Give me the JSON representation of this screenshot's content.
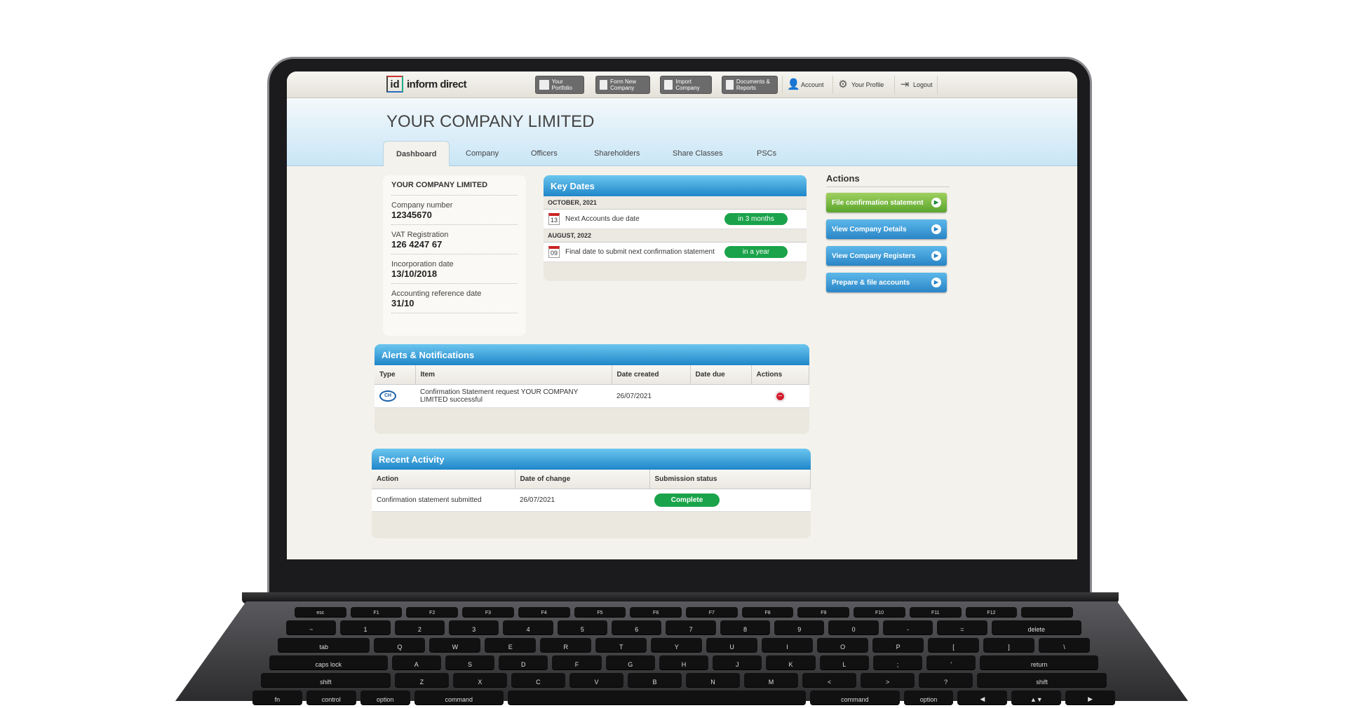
{
  "header": {
    "logo": "inform direct",
    "logo_mark": "id",
    "nav_buttons": [
      {
        "label": "Your Portfolio",
        "icon": "grid-icon"
      },
      {
        "label": "Form New Company",
        "icon": "folder-add-icon"
      },
      {
        "label": "Import Company",
        "icon": "upload-icon"
      },
      {
        "label": "Documents & Reports",
        "icon": "documents-icon"
      }
    ],
    "nav_links": [
      {
        "label": "Account",
        "icon": "user-icon",
        "glyph": "👤"
      },
      {
        "label": "Your Profile",
        "icon": "gear-icon",
        "glyph": "⚙"
      },
      {
        "label": "Logout",
        "icon": "logout-icon",
        "glyph": "⇥"
      }
    ]
  },
  "company_title": "YOUR COMPANY LIMITED",
  "tabs": [
    "Dashboard",
    "Company",
    "Officers",
    "Shareholders",
    "Share Classes",
    "PSCs"
  ],
  "info_card": {
    "title": "YOUR COMPANY LIMITED",
    "rows": [
      {
        "label": "Company number",
        "value": "12345670"
      },
      {
        "label": "VAT Registration",
        "value": "126 4247 67"
      },
      {
        "label": "Incorporation date",
        "value": "13/10/2018"
      },
      {
        "label": "Accounting reference date",
        "value": "31/10"
      }
    ]
  },
  "key_dates": {
    "title": "Key Dates",
    "groups": [
      {
        "month": "OCTOBER, 2021",
        "day": "13",
        "text": "Next Accounts due date",
        "badge": "in 3 months"
      },
      {
        "month": "AUGUST, 2022",
        "day": "09",
        "text": "Final date to submit next confirmation statement",
        "badge": "in a year"
      }
    ]
  },
  "actions": {
    "title": "Actions",
    "buttons": [
      {
        "label": "File confirmation statement",
        "color": "#6cb33f"
      },
      {
        "label": "View Company Details",
        "color": "#3a96d6"
      },
      {
        "label": "View Company Registers",
        "color": "#3a96d6"
      },
      {
        "label": "Prepare & file accounts",
        "color": "#3a96d6"
      }
    ]
  },
  "alerts": {
    "title": "Alerts & Notifications",
    "columns": [
      "Type",
      "Item",
      "Date created",
      "Date due",
      "Actions"
    ],
    "rows": [
      {
        "type_icon": "companies-house-icon",
        "item": "Confirmation Statement request YOUR COMPANY LIMITED successful",
        "date_created": "26/07/2021",
        "date_due": "",
        "action_icon": "remove-icon"
      }
    ]
  },
  "recent": {
    "title": "Recent Activity",
    "columns": [
      "Action",
      "Date of change",
      "Submission status"
    ],
    "rows": [
      {
        "action": "Confirmation statement submitted",
        "date": "26/07/2021",
        "status": "Complete"
      }
    ]
  },
  "keyboard": {
    "rows": [
      [
        "esc",
        "F1",
        "F2",
        "F3",
        "F4",
        "F5",
        "F6",
        "F7",
        "F8",
        "F9",
        "F10",
        "F11",
        "F12",
        ""
      ],
      [
        "~",
        "1",
        "2",
        "3",
        "4",
        "5",
        "6",
        "7",
        "8",
        "9",
        "0",
        "-",
        "=",
        "delete"
      ],
      [
        "tab",
        "Q",
        "W",
        "E",
        "R",
        "T",
        "Y",
        "U",
        "I",
        "O",
        "P",
        "[",
        "]",
        "\\"
      ],
      [
        "caps lock",
        "A",
        "S",
        "D",
        "F",
        "G",
        "H",
        "J",
        "K",
        "L",
        ";",
        "'",
        "return"
      ],
      [
        "shift",
        "Z",
        "X",
        "C",
        "V",
        "B",
        "N",
        "M",
        "<",
        ">",
        "?",
        "shift"
      ],
      [
        "fn",
        "control",
        "option",
        "command",
        "",
        "command",
        "option",
        "◀",
        "▲▼",
        "▶"
      ]
    ]
  }
}
